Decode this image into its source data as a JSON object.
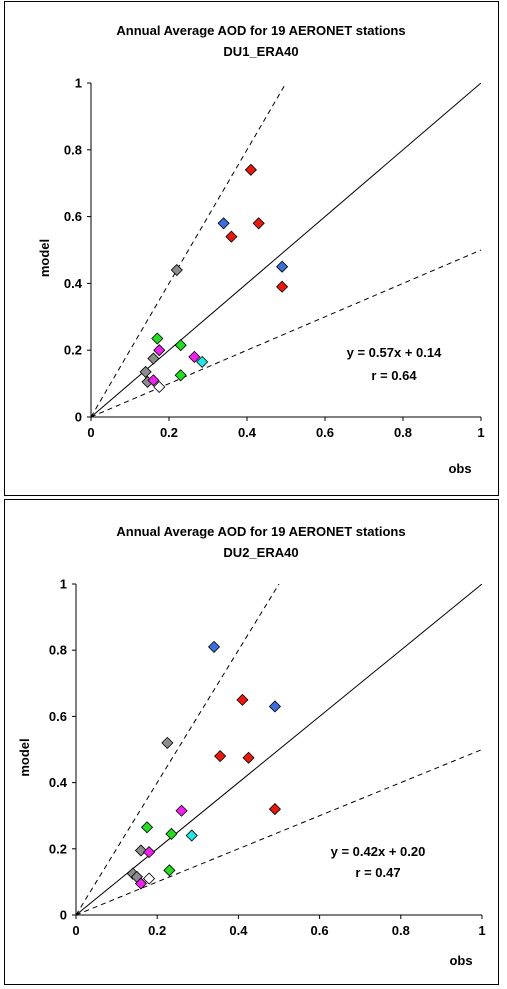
{
  "chart_data": [
    {
      "type": "scatter",
      "title": "Annual Average AOD for 19 AERONET stations",
      "subtitle": "DU1_ERA40",
      "xlabel": "obs",
      "ylabel": "model",
      "xlim": [
        0,
        1
      ],
      "ylim": [
        0,
        1
      ],
      "xticks": [
        "0",
        "0.2",
        "0.4",
        "0.6",
        "0.8",
        "1"
      ],
      "yticks": [
        "0",
        "0.2",
        "0.4",
        "0.6",
        "0.8",
        "1"
      ],
      "grid": false,
      "reference_lines": [
        {
          "style": "solid",
          "slope": 1
        },
        {
          "style": "dashed",
          "slope": 2
        },
        {
          "style": "dashed",
          "slope": 0.5
        }
      ],
      "regression_text": "y = 0.57x + 0.14",
      "r_text": "r = 0.64",
      "points": [
        {
          "x": 0.41,
          "y": 0.74,
          "color": "#e8180c"
        },
        {
          "x": 0.43,
          "y": 0.58,
          "color": "#e8180c"
        },
        {
          "x": 0.36,
          "y": 0.54,
          "color": "#e8180c"
        },
        {
          "x": 0.49,
          "y": 0.39,
          "color": "#e8180c"
        },
        {
          "x": 0.34,
          "y": 0.58,
          "color": "#3c6ee0"
        },
        {
          "x": 0.49,
          "y": 0.45,
          "color": "#3c6ee0"
        },
        {
          "x": 0.22,
          "y": 0.44,
          "color": "#8c8c8c"
        },
        {
          "x": 0.16,
          "y": 0.175,
          "color": "#8c8c8c"
        },
        {
          "x": 0.14,
          "y": 0.135,
          "color": "#8c8c8c"
        },
        {
          "x": 0.145,
          "y": 0.105,
          "color": "#8c8c8c"
        },
        {
          "x": 0.17,
          "y": 0.235,
          "color": "#22dd22"
        },
        {
          "x": 0.23,
          "y": 0.215,
          "color": "#22dd22"
        },
        {
          "x": 0.23,
          "y": 0.125,
          "color": "#22dd22"
        },
        {
          "x": 0.175,
          "y": 0.2,
          "color": "#ee22ee"
        },
        {
          "x": 0.265,
          "y": 0.18,
          "color": "#ee22ee"
        },
        {
          "x": 0.16,
          "y": 0.11,
          "color": "#ee22ee"
        },
        {
          "x": 0.285,
          "y": 0.165,
          "color": "#22e5e5"
        },
        {
          "x": 0.175,
          "y": 0.09,
          "color": "#ffffff"
        }
      ]
    },
    {
      "type": "scatter",
      "title": "Annual Average AOD for 19 AERONET stations",
      "subtitle": "DU2_ERA40",
      "xlabel": "obs",
      "ylabel": "model",
      "xlim": [
        0,
        1
      ],
      "ylim": [
        0,
        1
      ],
      "xticks": [
        "0",
        "0.2",
        "0.4",
        "0.6",
        "0.8",
        "1"
      ],
      "yticks": [
        "0",
        "0.2",
        "0.4",
        "0.6",
        "0.8",
        "1"
      ],
      "grid": false,
      "reference_lines": [
        {
          "style": "solid",
          "slope": 1
        },
        {
          "style": "dashed",
          "slope": 2
        },
        {
          "style": "dashed",
          "slope": 0.5
        }
      ],
      "regression_text": "y = 0.42x + 0.20",
      "r_text": "r = 0.47",
      "points": [
        {
          "x": 0.34,
          "y": 0.81,
          "color": "#3c6ee0"
        },
        {
          "x": 0.49,
          "y": 0.63,
          "color": "#3c6ee0"
        },
        {
          "x": 0.41,
          "y": 0.65,
          "color": "#e8180c"
        },
        {
          "x": 0.355,
          "y": 0.48,
          "color": "#e8180c"
        },
        {
          "x": 0.425,
          "y": 0.475,
          "color": "#e8180c"
        },
        {
          "x": 0.49,
          "y": 0.32,
          "color": "#e8180c"
        },
        {
          "x": 0.225,
          "y": 0.52,
          "color": "#8c8c8c"
        },
        {
          "x": 0.16,
          "y": 0.195,
          "color": "#8c8c8c"
        },
        {
          "x": 0.14,
          "y": 0.125,
          "color": "#8c8c8c"
        },
        {
          "x": 0.15,
          "y": 0.115,
          "color": "#8c8c8c"
        },
        {
          "x": 0.175,
          "y": 0.265,
          "color": "#22dd22"
        },
        {
          "x": 0.235,
          "y": 0.245,
          "color": "#22dd22"
        },
        {
          "x": 0.23,
          "y": 0.135,
          "color": "#22dd22"
        },
        {
          "x": 0.26,
          "y": 0.315,
          "color": "#ee22ee"
        },
        {
          "x": 0.18,
          "y": 0.19,
          "color": "#ee22ee"
        },
        {
          "x": 0.16,
          "y": 0.095,
          "color": "#ee22ee"
        },
        {
          "x": 0.285,
          "y": 0.24,
          "color": "#22e5e5"
        },
        {
          "x": 0.18,
          "y": 0.11,
          "color": "#ffffff"
        }
      ]
    }
  ]
}
